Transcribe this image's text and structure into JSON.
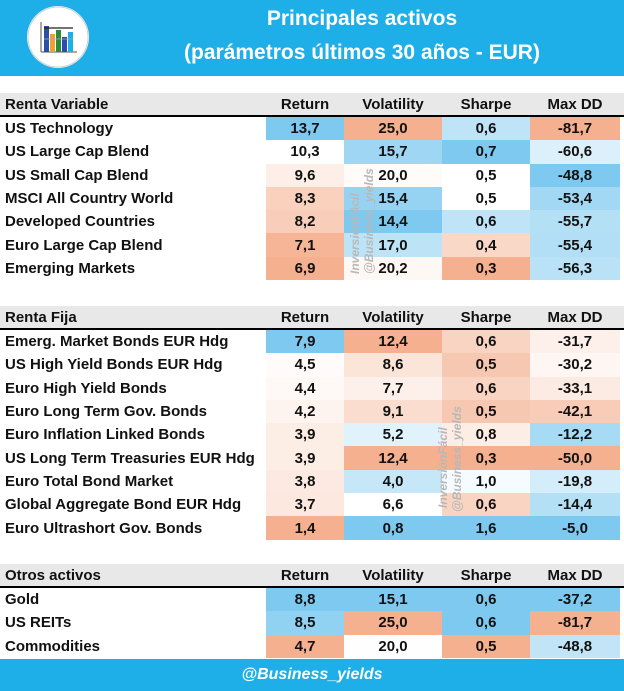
{
  "header": {
    "title_line1": "Principales activos",
    "title_line2": "(parámetros últimos 30 años - EUR)"
  },
  "columns": {
    "return": "Return",
    "volatility": "Volatility",
    "sharpe": "Sharpe",
    "maxdd": "Max DD"
  },
  "watermark": {
    "brand": "InversiónFácil",
    "handle": "@Business_yields"
  },
  "colors": {
    "header_bg": "#1eaee8",
    "section_bg": "#e8e8e8",
    "blue_scale": "#7ec9ef",
    "orange_scale": "#f4b08f"
  },
  "sections": [
    {
      "title": "Renta Variable",
      "rows": [
        {
          "name": "US Technology",
          "ret": "13,7",
          "vol": "25,0",
          "sharpe": "0,6",
          "dd": "-81,7"
        },
        {
          "name": "US Large Cap Blend",
          "ret": "10,3",
          "vol": "15,7",
          "sharpe": "0,7",
          "dd": "-60,6"
        },
        {
          "name": "US Small Cap Blend",
          "ret": "9,6",
          "vol": "20,0",
          "sharpe": "0,5",
          "dd": "-48,8"
        },
        {
          "name": "MSCI All Country World",
          "ret": "8,3",
          "vol": "15,4",
          "sharpe": "0,5",
          "dd": "-53,4"
        },
        {
          "name": "Developed Countries",
          "ret": "8,2",
          "vol": "14,4",
          "sharpe": "0,6",
          "dd": "-55,7"
        },
        {
          "name": "Euro Large Cap Blend",
          "ret": "7,1",
          "vol": "17,0",
          "sharpe": "0,4",
          "dd": "-55,4"
        },
        {
          "name": "Emerging Markets",
          "ret": "6,9",
          "vol": "20,2",
          "sharpe": "0,3",
          "dd": "-56,3"
        }
      ]
    },
    {
      "title": "Renta Fija",
      "rows": [
        {
          "name": "Emerg. Market Bonds EUR Hdg",
          "ret": "7,9",
          "vol": "12,4",
          "sharpe": "0,6",
          "dd": "-31,7"
        },
        {
          "name": "US High Yield Bonds EUR Hdg",
          "ret": "4,5",
          "vol": "8,6",
          "sharpe": "0,5",
          "dd": "-30,2"
        },
        {
          "name": "Euro High Yield Bonds",
          "ret": "4,4",
          "vol": "7,7",
          "sharpe": "0,6",
          "dd": "-33,1"
        },
        {
          "name": "Euro Long Term Gov. Bonds",
          "ret": "4,2",
          "vol": "9,1",
          "sharpe": "0,5",
          "dd": "-42,1"
        },
        {
          "name": "Euro Inflation Linked Bonds",
          "ret": "3,9",
          "vol": "5,2",
          "sharpe": "0,8",
          "dd": "-12,2"
        },
        {
          "name": "US Long Term Treasuries EUR Hdg",
          "ret": "3,9",
          "vol": "12,4",
          "sharpe": "0,3",
          "dd": "-50,0"
        },
        {
          "name": "Euro Total Bond Market",
          "ret": "3,8",
          "vol": "4,0",
          "sharpe": "1,0",
          "dd": "-19,8"
        },
        {
          "name": "Global Aggregate Bond EUR Hdg",
          "ret": "3,7",
          "vol": "6,6",
          "sharpe": "0,6",
          "dd": "-14,4"
        },
        {
          "name": "Euro Ultrashort Gov. Bonds",
          "ret": "1,4",
          "vol": "0,8",
          "sharpe": "1,6",
          "dd": "-5,0"
        }
      ]
    },
    {
      "title": "Otros activos",
      "rows": [
        {
          "name": "Gold",
          "ret": "8,8",
          "vol": "15,1",
          "sharpe": "0,6",
          "dd": "-37,2"
        },
        {
          "name": "US REITs",
          "ret": "8,5",
          "vol": "25,0",
          "sharpe": "0,6",
          "dd": "-81,7"
        },
        {
          "name": "Commodities",
          "ret": "4,7",
          "vol": "20,0",
          "sharpe": "0,5",
          "dd": "-48,8"
        }
      ]
    }
  ],
  "footer": {
    "text": "@Business_yields"
  }
}
